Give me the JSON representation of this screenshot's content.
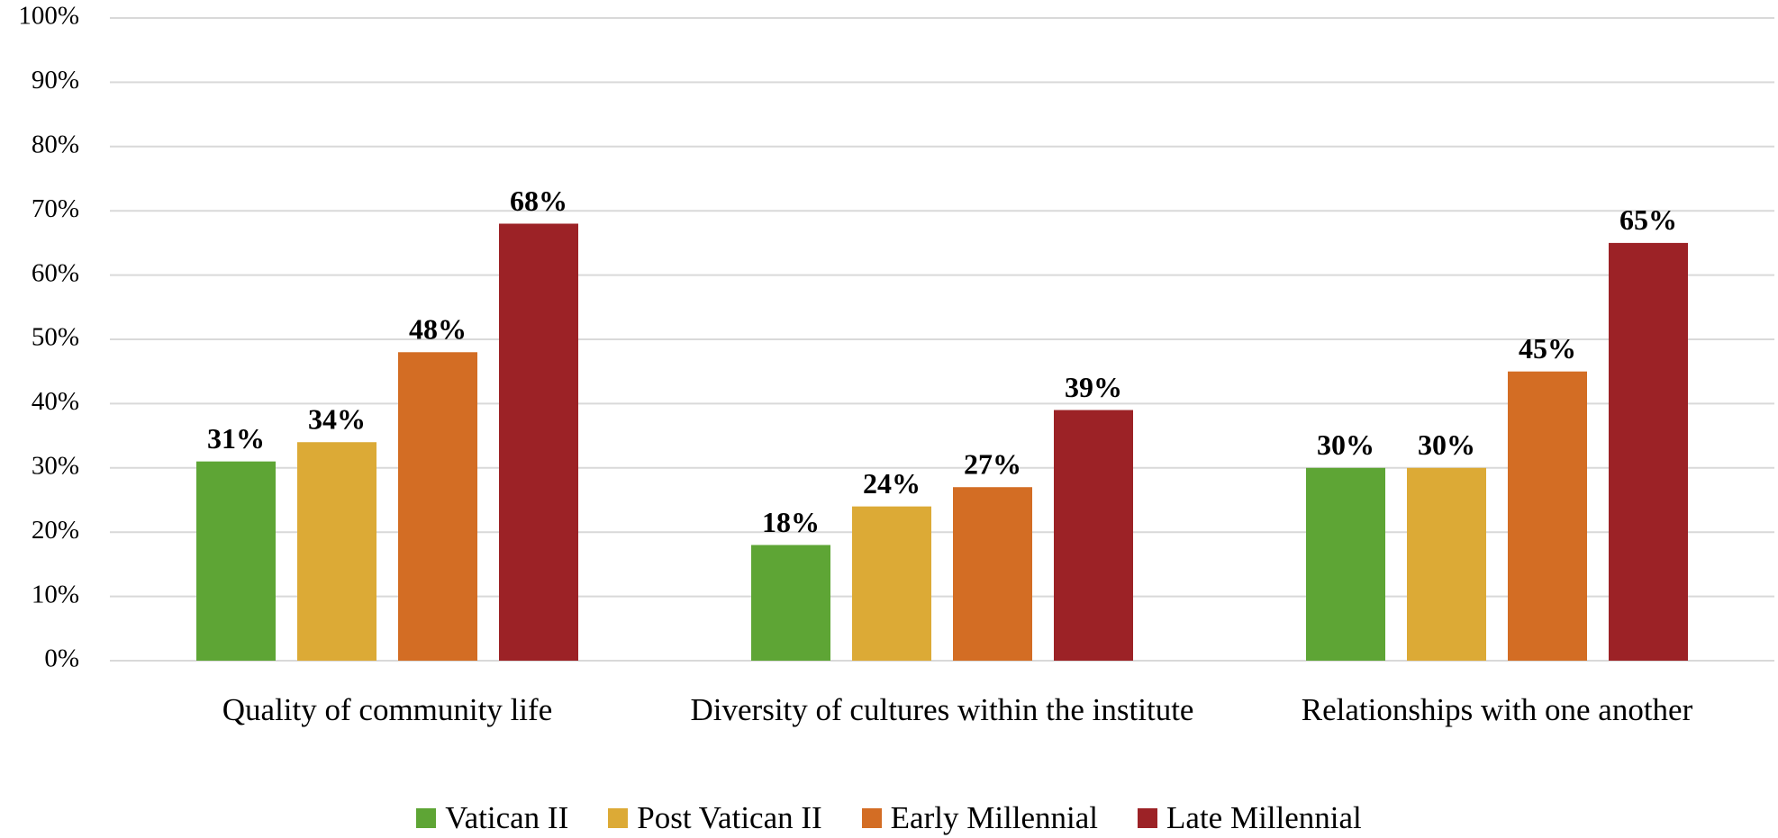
{
  "chart_data": {
    "type": "bar",
    "categories": [
      "Quality of community life",
      "Diversity of cultures within the institute",
      "Relationships with one another"
    ],
    "series": [
      {
        "name": "Vatican II",
        "color": "#5ea535",
        "values": [
          31,
          18,
          30
        ],
        "value_labels": [
          "31%",
          "18%",
          "30%"
        ]
      },
      {
        "name": "Post Vatican II",
        "color": "#dcaa36",
        "values": [
          34,
          24,
          30
        ],
        "value_labels": [
          "34%",
          "24%",
          "30%"
        ]
      },
      {
        "name": "Early Millennial",
        "color": "#d36d24",
        "values": [
          48,
          27,
          45
        ],
        "value_labels": [
          "48%",
          "27%",
          "45%"
        ]
      },
      {
        "name": "Late Millennial",
        "color": "#9c2226",
        "values": [
          68,
          39,
          65
        ],
        "value_labels": [
          "68%",
          "39%",
          "65%"
        ]
      }
    ],
    "ylim": [
      0,
      100
    ],
    "yticks": [
      {
        "value": 0,
        "label": "0%"
      },
      {
        "value": 10,
        "label": "10%"
      },
      {
        "value": 20,
        "label": "20%"
      },
      {
        "value": 30,
        "label": "30%"
      },
      {
        "value": 40,
        "label": "40%"
      },
      {
        "value": 50,
        "label": "50%"
      },
      {
        "value": 60,
        "label": "60%"
      },
      {
        "value": 70,
        "label": "70%"
      },
      {
        "value": 80,
        "label": "80%"
      },
      {
        "value": 90,
        "label": "90%"
      },
      {
        "value": 100,
        "label": "100%"
      }
    ],
    "grid": true,
    "legend": "bottom"
  }
}
